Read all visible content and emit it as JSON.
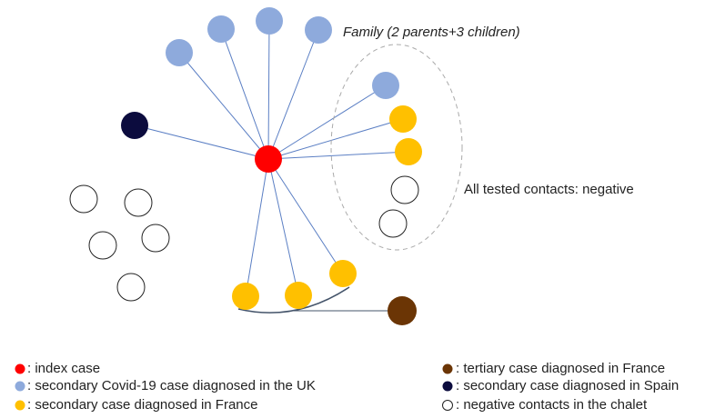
{
  "annotations": {
    "family": "Family (2 parents+3 children)",
    "negative": "All tested contacts: negative"
  },
  "legend": [
    ": index case",
    ": secondary Covid-19 case diagnosed in the UK",
    ": secondary case diagnosed in France",
    ": tertiary case diagnosed in France",
    ": secondary case diagnosed in Spain",
    ": negative contacts in the chalet"
  ]
}
